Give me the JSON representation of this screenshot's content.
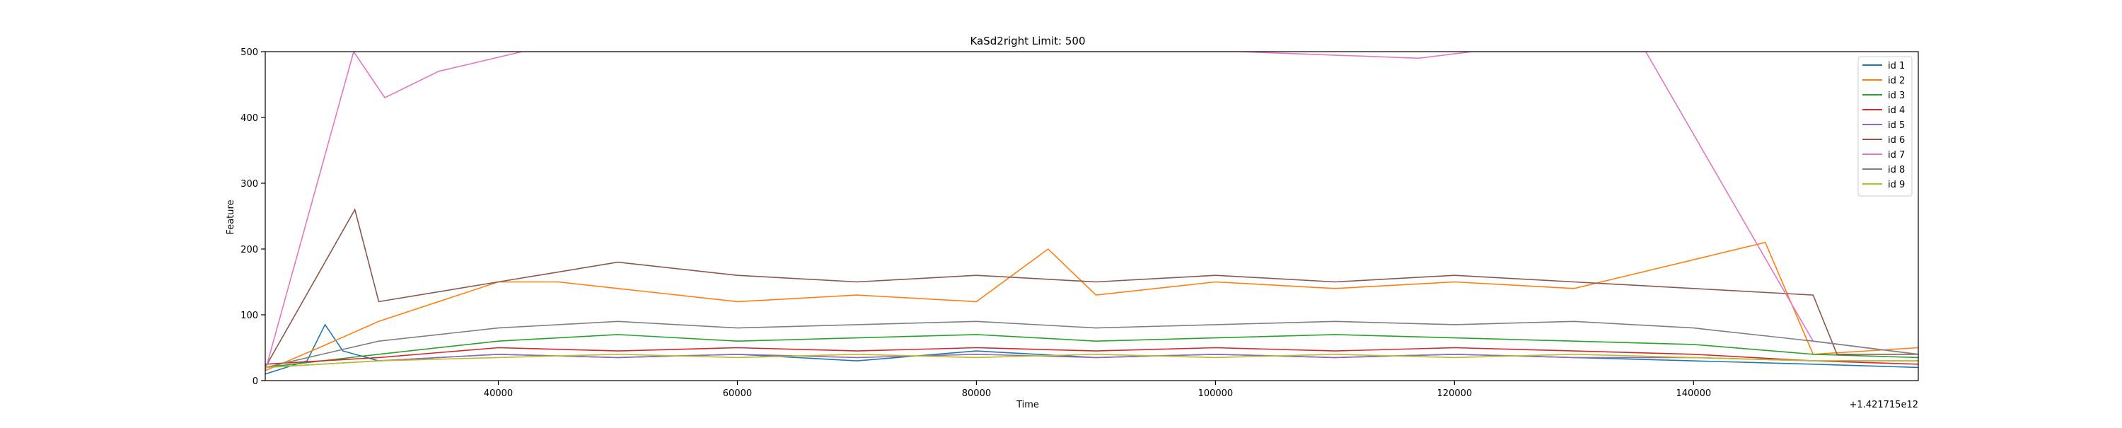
{
  "chart_data": {
    "type": "line",
    "title": "KaSd2right Limit: 500",
    "xlabel": "Time",
    "ylabel": "Feature",
    "x_offset_label": "+1.421715e12",
    "xlim": [
      20500,
      158800
    ],
    "ylim": [
      0,
      500
    ],
    "xticks": [
      40000,
      60000,
      80000,
      100000,
      120000,
      140000
    ],
    "xtick_labels": [
      "40000",
      "60000",
      "80000",
      "100000",
      "120000",
      "140000"
    ],
    "yticks": [
      0,
      100,
      200,
      300,
      400,
      500
    ],
    "ytick_labels": [
      "0",
      "100",
      "200",
      "300",
      "400",
      "500"
    ],
    "grid": false,
    "legend_position": "top-right",
    "series": [
      {
        "name": "id 1",
        "color": "#1f77b4",
        "values": [
          [
            20500,
            10
          ],
          [
            24000,
            30
          ],
          [
            25500,
            85
          ],
          [
            27000,
            45
          ],
          [
            30000,
            30
          ],
          [
            40000,
            40
          ],
          [
            50000,
            35
          ],
          [
            60000,
            40
          ],
          [
            70000,
            30
          ],
          [
            80000,
            45
          ],
          [
            90000,
            35
          ],
          [
            100000,
            40
          ],
          [
            110000,
            35
          ],
          [
            120000,
            40
          ],
          [
            130000,
            35
          ],
          [
            140000,
            30
          ],
          [
            150000,
            25
          ],
          [
            158800,
            20
          ]
        ]
      },
      {
        "name": "id 2",
        "color": "#ff7f0e",
        "values": [
          [
            20500,
            15
          ],
          [
            25000,
            50
          ],
          [
            30000,
            90
          ],
          [
            40000,
            150
          ],
          [
            45000,
            150
          ],
          [
            50000,
            140
          ],
          [
            60000,
            120
          ],
          [
            70000,
            130
          ],
          [
            80000,
            120
          ],
          [
            86000,
            200
          ],
          [
            90000,
            130
          ],
          [
            100000,
            150
          ],
          [
            110000,
            140
          ],
          [
            120000,
            150
          ],
          [
            130000,
            140
          ],
          [
            146000,
            210
          ],
          [
            150000,
            40
          ],
          [
            158800,
            50
          ]
        ]
      },
      {
        "name": "id 3",
        "color": "#2ca02c",
        "values": [
          [
            20500,
            20
          ],
          [
            30000,
            40
          ],
          [
            40000,
            60
          ],
          [
            50000,
            70
          ],
          [
            60000,
            60
          ],
          [
            70000,
            65
          ],
          [
            80000,
            70
          ],
          [
            90000,
            60
          ],
          [
            100000,
            65
          ],
          [
            110000,
            70
          ],
          [
            120000,
            65
          ],
          [
            130000,
            60
          ],
          [
            140000,
            55
          ],
          [
            150000,
            40
          ],
          [
            158800,
            35
          ]
        ]
      },
      {
        "name": "id 4",
        "color": "#d62728",
        "values": [
          [
            20500,
            25
          ],
          [
            30000,
            35
          ],
          [
            40000,
            50
          ],
          [
            50000,
            45
          ],
          [
            60000,
            50
          ],
          [
            70000,
            45
          ],
          [
            80000,
            50
          ],
          [
            90000,
            45
          ],
          [
            100000,
            50
          ],
          [
            110000,
            45
          ],
          [
            120000,
            50
          ],
          [
            130000,
            45
          ],
          [
            140000,
            40
          ],
          [
            150000,
            30
          ],
          [
            158800,
            25
          ]
        ]
      },
      {
        "name": "id 5",
        "color": "#9467bd",
        "values": [
          [
            20500,
            20
          ],
          [
            30000,
            30
          ],
          [
            40000,
            40
          ],
          [
            50000,
            35
          ],
          [
            60000,
            40
          ],
          [
            70000,
            35
          ],
          [
            80000,
            40
          ],
          [
            90000,
            35
          ],
          [
            100000,
            40
          ],
          [
            110000,
            35
          ],
          [
            120000,
            40
          ],
          [
            130000,
            35
          ],
          [
            140000,
            35
          ],
          [
            150000,
            30
          ],
          [
            158800,
            30
          ]
        ]
      },
      {
        "name": "id 6",
        "color": "#8c564b",
        "values": [
          [
            20500,
            20
          ],
          [
            28000,
            260
          ],
          [
            30000,
            120
          ],
          [
            40000,
            150
          ],
          [
            50000,
            180
          ],
          [
            60000,
            160
          ],
          [
            70000,
            150
          ],
          [
            80000,
            160
          ],
          [
            90000,
            150
          ],
          [
            100000,
            160
          ],
          [
            110000,
            150
          ],
          [
            120000,
            160
          ],
          [
            130000,
            150
          ],
          [
            140000,
            140
          ],
          [
            150000,
            130
          ],
          [
            152000,
            40
          ],
          [
            158800,
            40
          ]
        ]
      },
      {
        "name": "id 7",
        "color": "#e377c2",
        "values": [
          [
            20500,
            15
          ],
          [
            27900,
            500
          ],
          [
            30500,
            430
          ],
          [
            35000,
            470
          ],
          [
            42000,
            500
          ],
          [
            48000,
            500
          ],
          [
            68000,
            500
          ],
          [
            102000,
            500
          ],
          [
            117000,
            490
          ],
          [
            121500,
            500
          ],
          [
            136000,
            500
          ],
          [
            150000,
            60
          ],
          [
            158800,
            40
          ]
        ]
      },
      {
        "name": "id 8",
        "color": "#7f7f7f",
        "values": [
          [
            20500,
            20
          ],
          [
            30000,
            60
          ],
          [
            40000,
            80
          ],
          [
            50000,
            90
          ],
          [
            60000,
            80
          ],
          [
            70000,
            85
          ],
          [
            80000,
            90
          ],
          [
            90000,
            80
          ],
          [
            100000,
            85
          ],
          [
            110000,
            90
          ],
          [
            120000,
            85
          ],
          [
            130000,
            90
          ],
          [
            140000,
            80
          ],
          [
            150000,
            60
          ],
          [
            158800,
            40
          ]
        ]
      },
      {
        "name": "id 9",
        "color": "#bcbd22",
        "values": [
          [
            20500,
            20
          ],
          [
            30000,
            30
          ],
          [
            40000,
            35
          ],
          [
            50000,
            40
          ],
          [
            60000,
            35
          ],
          [
            70000,
            40
          ],
          [
            80000,
            35
          ],
          [
            90000,
            40
          ],
          [
            100000,
            35
          ],
          [
            110000,
            40
          ],
          [
            120000,
            35
          ],
          [
            130000,
            40
          ],
          [
            140000,
            35
          ],
          [
            150000,
            30
          ],
          [
            158800,
            30
          ]
        ]
      }
    ]
  }
}
